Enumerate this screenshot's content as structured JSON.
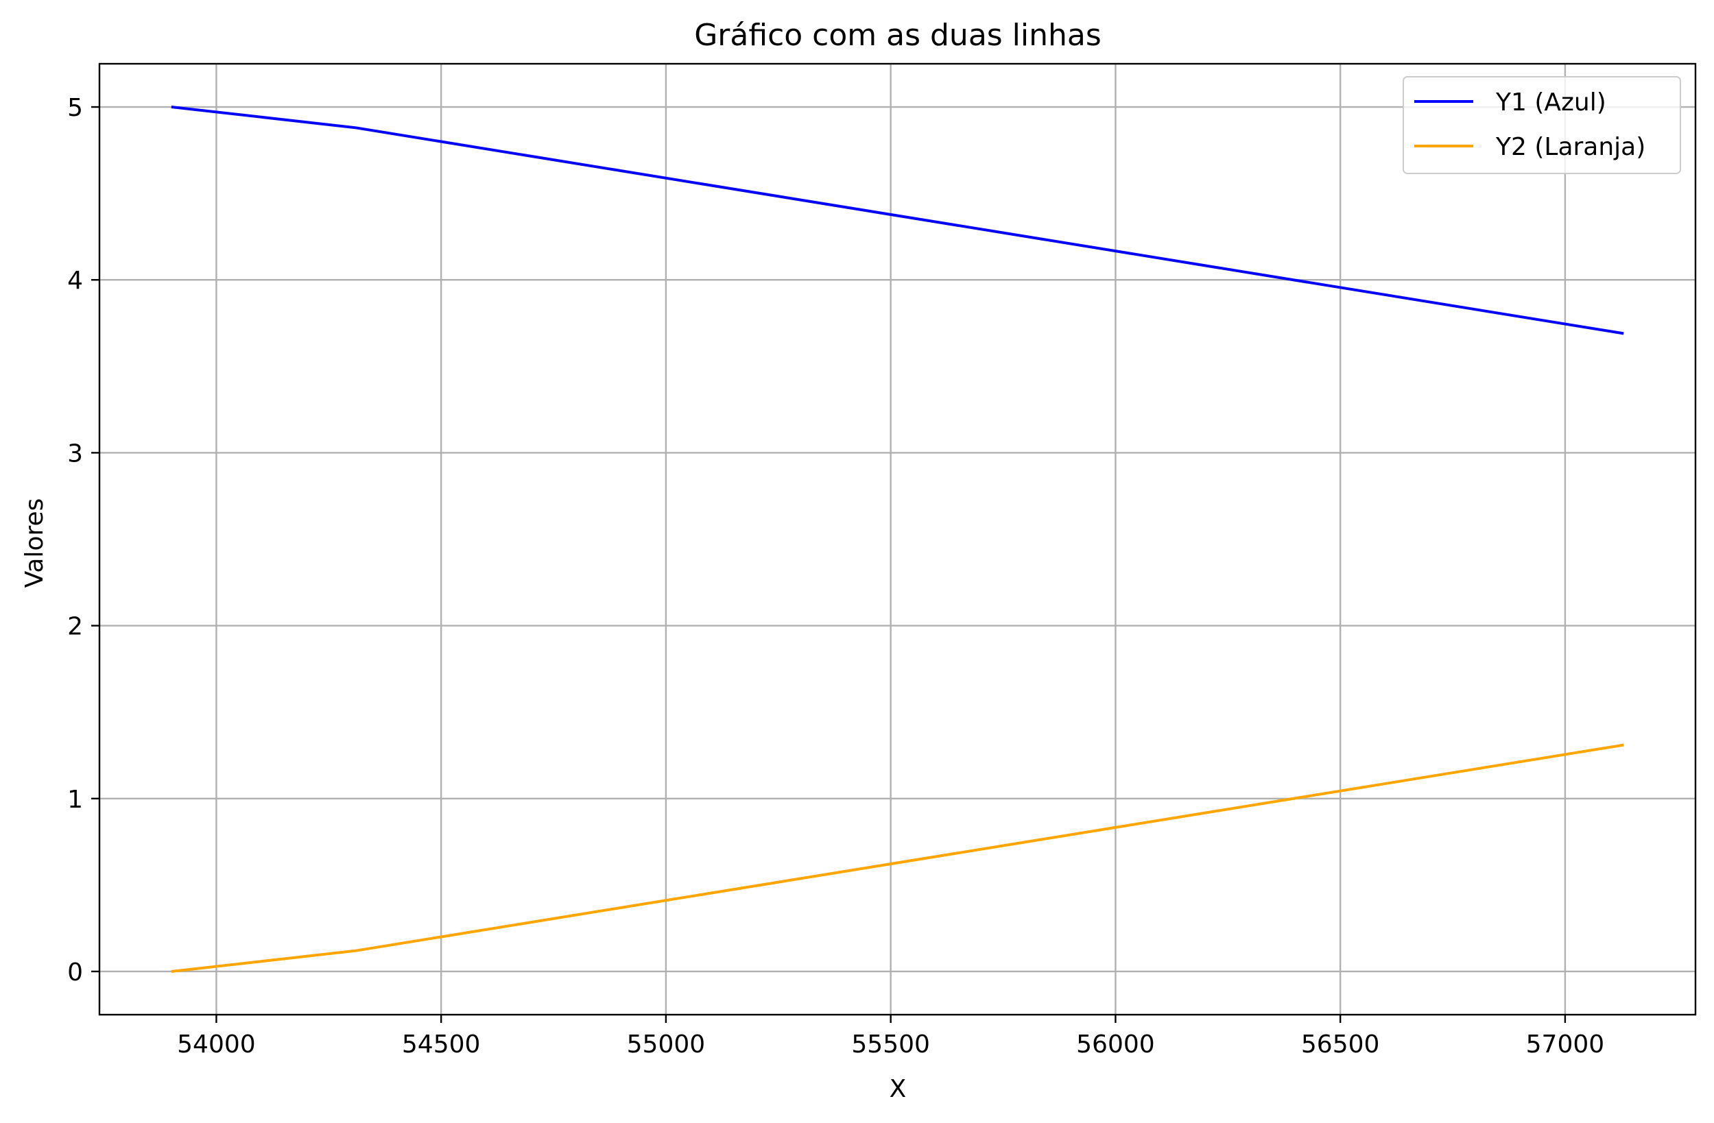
{
  "chart_data": {
    "type": "line",
    "title": "Gráfico com as duas linhas",
    "xlabel": "X",
    "ylabel": "Valores",
    "x": [
      53900,
      54310,
      57130
    ],
    "series": [
      {
        "name": "Y1 (Azul)",
        "color": "#0000ff",
        "values": [
          5.0,
          4.88,
          3.69
        ]
      },
      {
        "name": "Y2 (Laranja)",
        "color": "#ffa500",
        "values": [
          0.0,
          0.12,
          1.31
        ]
      }
    ],
    "xlim": [
      53740,
      57290
    ],
    "ylim": [
      -0.25,
      5.25
    ],
    "xticks": [
      54000,
      54500,
      55000,
      55500,
      56000,
      56500,
      57000
    ],
    "yticks": [
      0,
      1,
      2,
      3,
      4,
      5
    ],
    "grid": true,
    "legend_position": "top-right",
    "colors": {
      "grid": "#b0b0b0",
      "axes": "#000000"
    }
  }
}
